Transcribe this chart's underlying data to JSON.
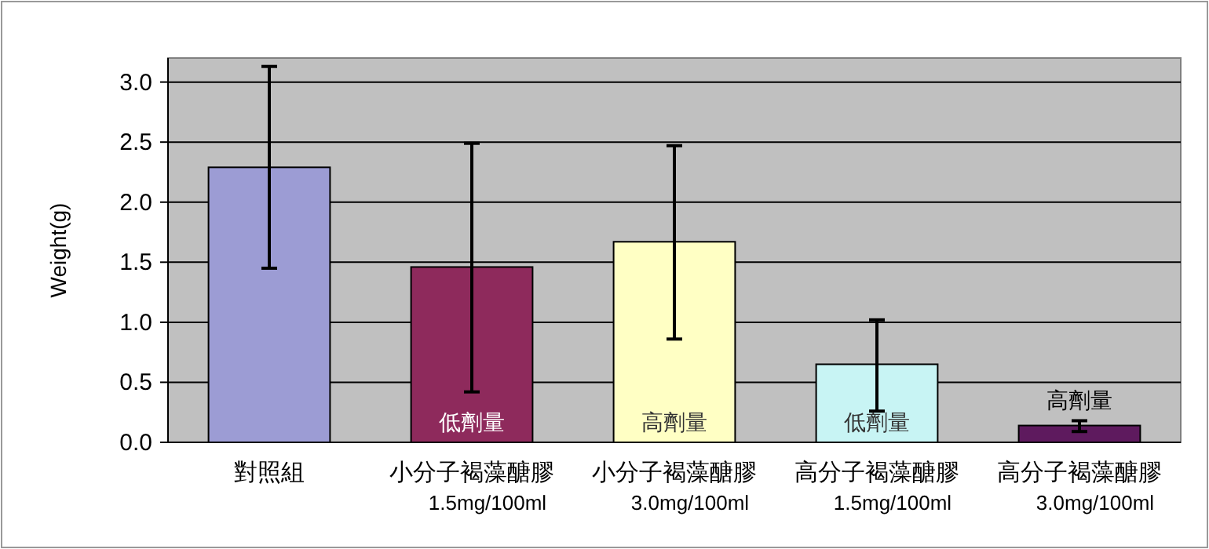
{
  "chart_data": {
    "type": "bar",
    "ylabel": "Weight(g)",
    "categories": [
      "對照組",
      "小分子褐藻醣膠\n1.5mg/100ml",
      "小分子褐藻醣膠\n3.0mg/100ml",
      "高分子褐藻醣膠\n1.5mg/100ml",
      "高分子褐藻醣膠\n3.0mg/100ml"
    ],
    "values": [
      2.29,
      1.46,
      1.67,
      0.65,
      0.14
    ],
    "colors": [
      "#9c9cd4",
      "#8e2a5c",
      "#ffffc4",
      "#c8f4f4",
      "#5e1a5e"
    ],
    "errors": [
      [
        1.45,
        3.13
      ],
      [
        0.42,
        2.49
      ],
      [
        0.86,
        2.47
      ],
      [
        0.26,
        1.02
      ],
      [
        0.09,
        0.18
      ]
    ],
    "ylim": [
      0,
      3.2
    ],
    "yticks": [
      {
        "value": 0,
        "label": "0.0"
      },
      {
        "value": 0.5,
        "label": "0.5"
      },
      {
        "value": 1,
        "label": "1.0"
      },
      {
        "value": 1.5,
        "label": "1.5"
      },
      {
        "value": 2,
        "label": "2.0"
      },
      {
        "value": 2.5,
        "label": "2.5"
      },
      {
        "value": 3,
        "label": "3.0"
      }
    ],
    "grid": "y",
    "annotations": [
      "低劑量",
      "高劑量",
      "低劑量",
      "高劑量"
    ]
  }
}
